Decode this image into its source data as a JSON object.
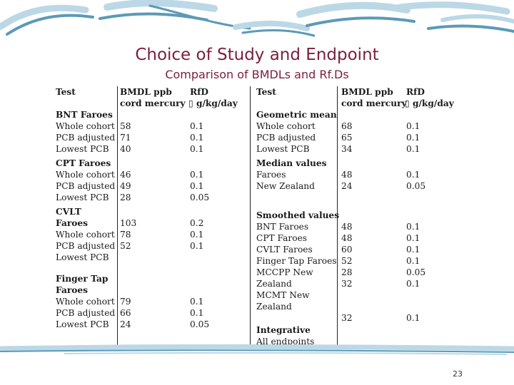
{
  "title": "Choice of Study and Endpoint",
  "subtitle": "Comparison of BMDLs and Rf.Ds",
  "page_number": "23",
  "colors": {
    "title": "#7a1f3c",
    "wave_dark": "#5a9ab8",
    "wave_light": "#bcd8e6"
  },
  "table": {
    "headers_left": {
      "test": "Test",
      "bmdl_1": "BMDL ppb",
      "bmdl_2": "cord mercury",
      "rfd_1": "RfD",
      "rfd_2": "▯ g/kg/day"
    },
    "headers_right": {
      "test": "Test",
      "bmdl_1": "BMDL ppb",
      "bmdl_2": "cord mercury",
      "rfd_1": "RfD",
      "rfd_2": "▯ g/kg/day"
    },
    "left": [
      {
        "label": "BNT Faroes",
        "bold": true,
        "bmdl": "",
        "rfd": ""
      },
      {
        "label": "Whole cohort",
        "bold": false,
        "bmdl": "58",
        "rfd": "0.1"
      },
      {
        "label": "PCB adjusted",
        "bold": false,
        "bmdl": "71",
        "rfd": "0.1"
      },
      {
        "label": "Lowest PCB",
        "bold": false,
        "bmdl": "40",
        "rfd": "0.1"
      },
      {
        "label": "CPT Faroes",
        "bold": true,
        "bmdl": "",
        "rfd": ""
      },
      {
        "label": "Whole cohort",
        "bold": false,
        "bmdl": "46",
        "rfd": "0.1"
      },
      {
        "label": "PCB adjusted",
        "bold": false,
        "bmdl": "49",
        "rfd": "0.1"
      },
      {
        "label": "Lowest PCB",
        "bold": false,
        "bmdl": "28",
        "rfd": "0.05"
      },
      {
        "label": "CVLT",
        "bold": true,
        "bmdl": "",
        "rfd": ""
      },
      {
        "label": "Faroes",
        "bold": true,
        "bmdl": "103",
        "rfd": "0.2"
      },
      {
        "label": "Whole cohort",
        "bold": false,
        "bmdl": "78",
        "rfd": "0.1"
      },
      {
        "label": "PCB adjusted",
        "bold": false,
        "bmdl": "52",
        "rfd": "0.1"
      },
      {
        "label": "Lowest PCB",
        "bold": false,
        "bmdl": "",
        "rfd": ""
      },
      {
        "label": "Finger Tap",
        "bold": true,
        "bmdl": "",
        "rfd": ""
      },
      {
        "label": "Faroes",
        "bold": true,
        "bmdl": "",
        "rfd": ""
      },
      {
        "label": "Whole cohort",
        "bold": false,
        "bmdl": "79",
        "rfd": "0.1"
      },
      {
        "label": "PCB adjusted",
        "bold": false,
        "bmdl": "66",
        "rfd": "0.1"
      },
      {
        "label": "Lowest PCB",
        "bold": false,
        "bmdl": "24",
        "rfd": "0.05"
      }
    ],
    "right": [
      {
        "label": "Geometric mean",
        "bold": true,
        "bmdl": "",
        "rfd": ""
      },
      {
        "label": "Whole cohort",
        "bold": false,
        "bmdl": "68",
        "rfd": "0.1"
      },
      {
        "label": "PCB adjusted",
        "bold": false,
        "bmdl": "65",
        "rfd": "0.1"
      },
      {
        "label": "Lowest PCB",
        "bold": false,
        "bmdl": "34",
        "rfd": "0.1"
      },
      {
        "label": "Median values",
        "bold": true,
        "bmdl": "",
        "rfd": ""
      },
      {
        "label": "Faroes",
        "bold": false,
        "bmdl": "48",
        "rfd": "0.1"
      },
      {
        "label": "New Zealand",
        "bold": false,
        "bmdl": "24",
        "rfd": "0.05"
      },
      {
        "label": "Smoothed values",
        "bold": true,
        "bmdl": "",
        "rfd": ""
      },
      {
        "label": "BNT Faroes",
        "bold": false,
        "bmdl": "48",
        "rfd": "0.1"
      },
      {
        "label": "CPT Faroes",
        "bold": false,
        "bmdl": "48",
        "rfd": "0.1"
      },
      {
        "label": "CVLT Faroes",
        "bold": false,
        "bmdl": "60",
        "rfd": "0.1"
      },
      {
        "label": "Finger Tap Faroes",
        "bold": false,
        "bmdl": "52",
        "rfd": "0.1"
      },
      {
        "label": "MCCPP New",
        "bold": false,
        "bmdl": "28",
        "rfd": "0.05"
      },
      {
        "label": "Zealand",
        "bold": false,
        "bmdl": "32",
        "rfd": "0.1"
      },
      {
        "label": "MCMT New",
        "bold": false,
        "bmdl": "",
        "rfd": ""
      },
      {
        "label": "Zealand",
        "bold": false,
        "bmdl": "",
        "rfd": ""
      },
      {
        "label": "",
        "bold": false,
        "bmdl": "32",
        "rfd": "0.1"
      },
      {
        "label": "Integrative",
        "bold": true,
        "bmdl": "",
        "rfd": ""
      },
      {
        "label": "All endpoints",
        "bold": false,
        "bmdl": "",
        "rfd": ""
      }
    ]
  }
}
